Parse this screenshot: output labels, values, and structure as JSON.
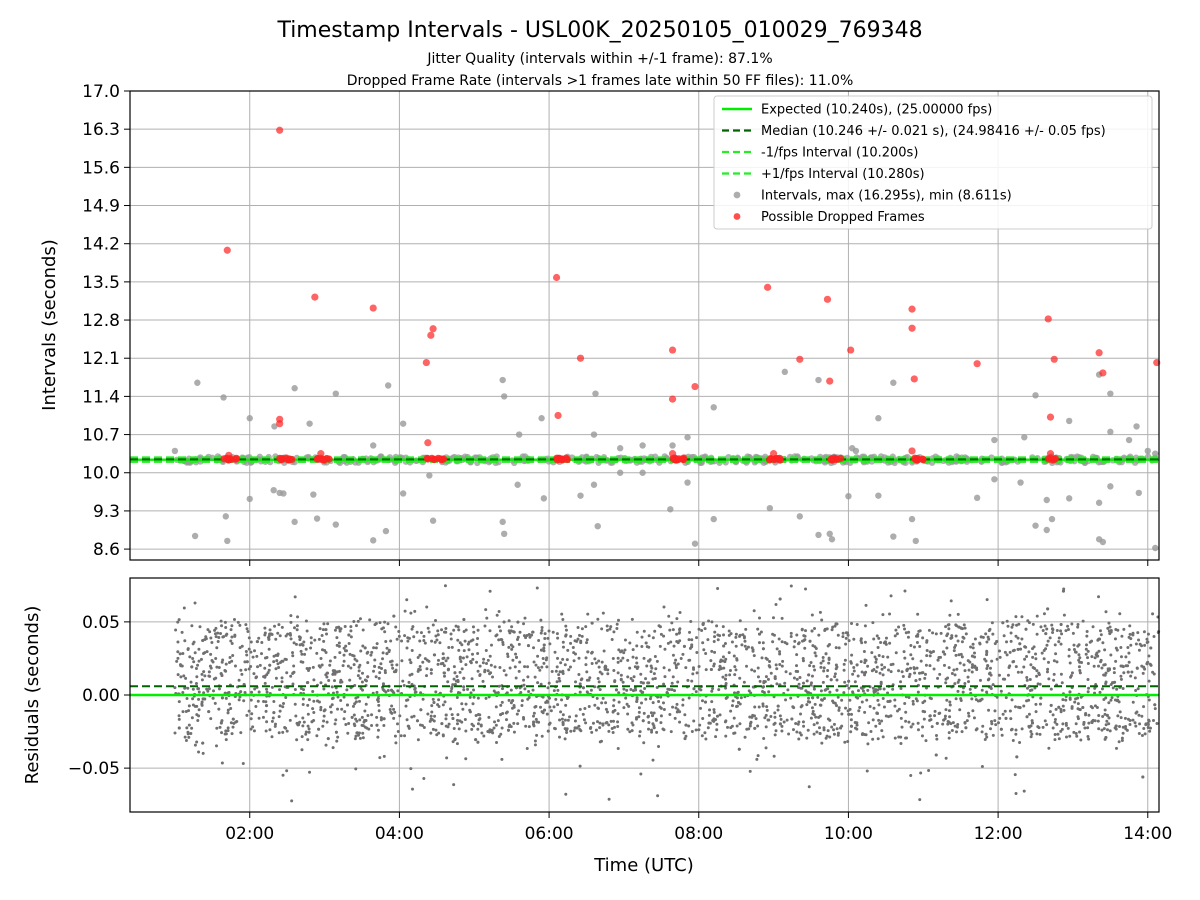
{
  "figure": {
    "title": "Timestamp Intervals - USL00K_20250105_010029_769348",
    "subtitle_1": "Jitter Quality (intervals within +/-1 frame): 87.1%",
    "subtitle_2": "Dropped Frame Rate (intervals >1 frames late within 50 FF files): 11.0%"
  },
  "colors": {
    "expected": "#00ee00",
    "median": "#006400",
    "fps_bounds": "#22ee22",
    "intervals": "#999999",
    "dropped": "#ff2222",
    "residuals": "#707070",
    "grid": "#b0b0b0"
  },
  "chart_data": [
    {
      "type": "scatter",
      "ylabel": "Intervals (seconds)",
      "xlabel": "",
      "xlim": [
        0.4,
        14.15
      ],
      "ylim": [
        8.4,
        17.0
      ],
      "x_ticks": [
        2,
        4,
        6,
        8,
        10,
        12,
        14
      ],
      "y_ticks": [
        {
          "value": 8.6,
          "label": "8.6"
        },
        {
          "value": 9.3,
          "label": "9.3"
        },
        {
          "value": 10.0,
          "label": "10.0"
        },
        {
          "value": 10.7,
          "label": "10.7"
        },
        {
          "value": 11.4,
          "label": "11.4"
        },
        {
          "value": 12.1,
          "label": "12.1"
        },
        {
          "value": 12.8,
          "label": "12.8"
        },
        {
          "value": 13.5,
          "label": "13.5"
        },
        {
          "value": 14.2,
          "label": "14.2"
        },
        {
          "value": 14.9,
          "label": "14.9"
        },
        {
          "value": 15.6,
          "label": "15.6"
        },
        {
          "value": 16.3,
          "label": "16.3"
        },
        {
          "value": 17.0,
          "label": "17.0"
        }
      ],
      "grid": true,
      "legend_position": "top-right",
      "legend": [
        {
          "label": "Expected (10.240s), (25.00000 fps)",
          "style": "solid",
          "color_key": "expected"
        },
        {
          "label": "Median (10.246 +/- 0.021 s), (24.98416 +/- 0.05 fps)",
          "style": "dashed",
          "color_key": "median"
        },
        {
          "label": "-1/fps Interval (10.200s)",
          "style": "dashed",
          "color_key": "fps_bounds"
        },
        {
          "label": "+1/fps Interval (10.280s)",
          "style": "dashed",
          "color_key": "fps_bounds"
        },
        {
          "label": "Intervals, max (16.295s), min (8.611s)",
          "style": "marker",
          "color_key": "intervals"
        },
        {
          "label": "Possible Dropped Frames",
          "style": "marker",
          "color_key": "dropped"
        }
      ],
      "lines": {
        "expected": 10.24,
        "median": 10.246,
        "lower_fps": 10.2,
        "upper_fps": 10.28
      },
      "series": [
        {
          "name": "Intervals, max (16.295s), min (8.611s)",
          "points": [
            [
              1.0,
              10.4
            ],
            [
              1.3,
              11.65
            ],
            [
              1.27,
              8.84
            ],
            [
              1.65,
              11.38
            ],
            [
              1.7,
              8.75
            ],
            [
              1.68,
              9.2
            ],
            [
              2.0,
              11.0
            ],
            [
              2.0,
              9.52
            ],
            [
              2.32,
              9.68
            ],
            [
              2.33,
              10.85
            ],
            [
              2.45,
              9.62
            ],
            [
              2.4,
              9.63
            ],
            [
              2.6,
              11.55
            ],
            [
              2.6,
              9.1
            ],
            [
              2.8,
              10.9
            ],
            [
              2.85,
              9.6
            ],
            [
              2.9,
              9.16
            ],
            [
              3.15,
              11.45
            ],
            [
              3.15,
              9.05
            ],
            [
              3.65,
              10.5
            ],
            [
              3.65,
              8.76
            ],
            [
              3.82,
              8.93
            ],
            [
              3.85,
              11.6
            ],
            [
              4.05,
              10.9
            ],
            [
              4.05,
              9.62
            ],
            [
              4.4,
              9.95
            ],
            [
              4.45,
              9.12
            ],
            [
              5.38,
              11.7
            ],
            [
              5.4,
              11.4
            ],
            [
              5.38,
              9.1
            ],
            [
              5.4,
              8.88
            ],
            [
              5.58,
              9.78
            ],
            [
              5.6,
              10.7
            ],
            [
              5.9,
              11.0
            ],
            [
              5.93,
              9.53
            ],
            [
              6.42,
              9.58
            ],
            [
              6.6,
              9.78
            ],
            [
              6.62,
              11.45
            ],
            [
              6.65,
              9.02
            ],
            [
              6.6,
              10.7
            ],
            [
              6.95,
              10.45
            ],
            [
              6.95,
              10.0
            ],
            [
              7.25,
              10.0
            ],
            [
              7.25,
              10.5
            ],
            [
              7.62,
              9.33
            ],
            [
              7.65,
              10.5
            ],
            [
              7.85,
              10.65
            ],
            [
              7.85,
              9.82
            ],
            [
              7.95,
              8.7
            ],
            [
              8.2,
              11.2
            ],
            [
              8.2,
              9.15
            ],
            [
              9.15,
              11.85
            ],
            [
              8.95,
              9.35
            ],
            [
              9.35,
              9.2
            ],
            [
              9.6,
              8.86
            ],
            [
              9.6,
              11.7
            ],
            [
              9.75,
              8.88
            ],
            [
              9.78,
              8.78
            ],
            [
              10.0,
              9.57
            ],
            [
              10.05,
              10.45
            ],
            [
              10.1,
              10.4
            ],
            [
              10.4,
              11.0
            ],
            [
              10.4,
              9.58
            ],
            [
              10.6,
              11.65
            ],
            [
              10.6,
              8.83
            ],
            [
              10.85,
              9.15
            ],
            [
              10.9,
              8.75
            ],
            [
              11.72,
              9.54
            ],
            [
              11.95,
              10.6
            ],
            [
              11.95,
              9.88
            ],
            [
              12.3,
              9.82
            ],
            [
              12.35,
              10.65
            ],
            [
              12.5,
              11.42
            ],
            [
              12.5,
              9.03
            ],
            [
              12.65,
              9.5
            ],
            [
              12.65,
              8.95
            ],
            [
              12.72,
              9.15
            ],
            [
              12.95,
              10.95
            ],
            [
              12.95,
              9.53
            ],
            [
              13.35,
              11.8
            ],
            [
              13.35,
              8.78
            ],
            [
              13.35,
              9.45
            ],
            [
              13.4,
              8.73
            ],
            [
              13.5,
              11.45
            ],
            [
              13.5,
              9.75
            ],
            [
              13.5,
              10.75
            ],
            [
              13.75,
              10.6
            ],
            [
              13.85,
              10.85
            ],
            [
              13.88,
              9.63
            ],
            [
              14.1,
              8.62
            ],
            [
              14.0,
              10.4
            ],
            [
              14.1,
              10.35
            ]
          ],
          "band": {
            "x_start": 1.0,
            "x_end": 14.15,
            "y_center": 10.24,
            "spread": 0.06,
            "count": 480
          }
        },
        {
          "name": "Possible Dropped Frames",
          "points": [
            [
              1.7,
              14.08
            ],
            [
              2.4,
              16.28
            ],
            [
              2.4,
              10.98
            ],
            [
              2.4,
              10.9
            ],
            [
              2.87,
              13.22
            ],
            [
              3.65,
              13.02
            ],
            [
              4.36,
              12.02
            ],
            [
              4.42,
              12.52
            ],
            [
              4.45,
              12.64
            ],
            [
              4.38,
              10.55
            ],
            [
              6.1,
              13.58
            ],
            [
              6.12,
              11.05
            ],
            [
              6.42,
              12.1
            ],
            [
              7.65,
              12.25
            ],
            [
              7.65,
              11.35
            ],
            [
              7.95,
              11.58
            ],
            [
              8.92,
              13.4
            ],
            [
              9.35,
              12.08
            ],
            [
              9.72,
              13.18
            ],
            [
              9.75,
              11.68
            ],
            [
              10.03,
              12.25
            ],
            [
              10.85,
              13.0
            ],
            [
              10.85,
              12.65
            ],
            [
              10.88,
              11.72
            ],
            [
              11.72,
              12.0
            ],
            [
              12.67,
              12.82
            ],
            [
              12.7,
              11.02
            ],
            [
              12.75,
              12.08
            ],
            [
              13.35,
              12.2
            ],
            [
              13.4,
              11.83
            ],
            [
              14.12,
              12.02
            ],
            [
              10.85,
              10.4
            ],
            [
              7.65,
              10.35
            ],
            [
              9.0,
              10.35
            ],
            [
              12.7,
              10.35
            ],
            [
              2.95,
              10.35
            ],
            [
              1.72,
              10.32
            ]
          ],
          "clusters": [
            1.7,
            1.78,
            2.42,
            2.52,
            2.92,
            3.02,
            4.42,
            4.55,
            6.15,
            6.22,
            7.68,
            7.75,
            8.98,
            9.05,
            9.78,
            9.85,
            10.88,
            10.95,
            12.72
          ]
        }
      ]
    },
    {
      "type": "scatter",
      "ylabel": "Residuals (seconds)",
      "xlabel": "Time (UTC)",
      "xlim": [
        0.4,
        14.15
      ],
      "ylim": [
        -0.08,
        0.08
      ],
      "x_ticks": [
        {
          "value": 2,
          "label": "02:00"
        },
        {
          "value": 4,
          "label": "04:00"
        },
        {
          "value": 6,
          "label": "06:00"
        },
        {
          "value": 8,
          "label": "08:00"
        },
        {
          "value": 10,
          "label": "10:00"
        },
        {
          "value": 12,
          "label": "12:00"
        },
        {
          "value": 14,
          "label": "14:00"
        }
      ],
      "y_ticks": [
        {
          "value": 0.05,
          "label": "0.05"
        },
        {
          "value": 0.0,
          "label": "0.00"
        },
        {
          "value": -0.05,
          "label": "−0.05"
        }
      ],
      "grid": true,
      "lines": {
        "expected": 0.0,
        "median": 0.006
      },
      "series": [
        {
          "name": "",
          "distribution": {
            "x_start": 1.0,
            "x_end": 14.15,
            "count": 3200,
            "levels": [
              -0.02,
              0.0,
              0.02,
              0.04
            ],
            "spread": 0.012
          }
        }
      ]
    }
  ]
}
